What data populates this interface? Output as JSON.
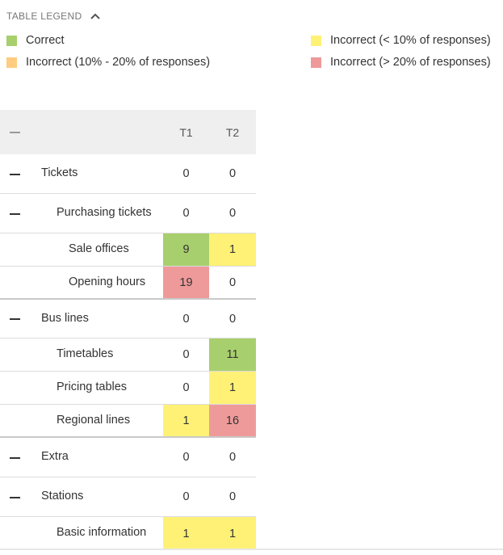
{
  "legend": {
    "title": "TABLE LEGEND",
    "items": [
      {
        "label": "Correct",
        "color": "#a8cf6d"
      },
      {
        "label": "Incorrect (< 10% of responses)",
        "color": "#fff176"
      },
      {
        "label": "Incorrect (10% - 20% of responses)",
        "color": "#ffcc80"
      },
      {
        "label": "Incorrect (> 20% of responses)",
        "color": "#ef9a9a"
      }
    ]
  },
  "table": {
    "columns": [
      "T1",
      "T2"
    ],
    "rows": [
      {
        "label": "Tickets",
        "t1": "0",
        "t2": "0"
      },
      {
        "label": "Purchasing tickets",
        "t1": "0",
        "t2": "0"
      },
      {
        "label": "Sale offices",
        "t1": "9",
        "t2": "1"
      },
      {
        "label": "Opening hours",
        "t1": "19",
        "t2": "0"
      },
      {
        "label": "Bus lines",
        "t1": "0",
        "t2": "0"
      },
      {
        "label": "Timetables",
        "t1": "0",
        "t2": "11"
      },
      {
        "label": "Pricing tables",
        "t1": "0",
        "t2": "1"
      },
      {
        "label": "Regional lines",
        "t1": "1",
        "t2": "16"
      },
      {
        "label": "Extra",
        "t1": "0",
        "t2": "0"
      },
      {
        "label": "Stations",
        "t1": "0",
        "t2": "0"
      },
      {
        "label": "Basic information",
        "t1": "1",
        "t2": "1"
      }
    ]
  }
}
